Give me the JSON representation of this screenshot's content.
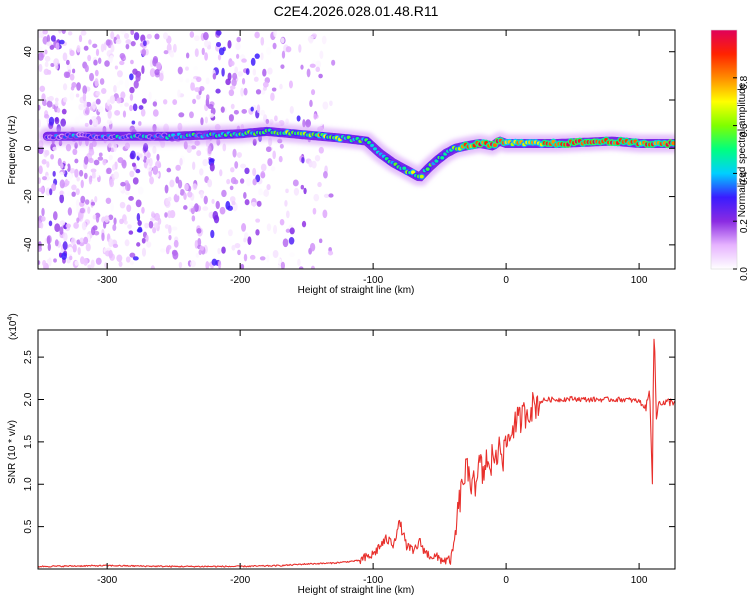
{
  "page": {
    "title": "C2E4.2026.028.01.48.R11"
  },
  "colors": {
    "snr_line": "#e8302c",
    "spectral_min": "#ffffff",
    "spectral_low": "#8a2be2",
    "spectral_max": "#e0005a"
  },
  "chart_data": [
    {
      "type": "heatmap",
      "title": "C2E4.2026.028.01.48.R11",
      "xlabel": "Height of straight line (km)",
      "ylabel": "Frequency (Hz)",
      "xlim": [
        -352,
        127
      ],
      "ylim": [
        -50,
        49
      ],
      "xticks": [
        -300,
        -200,
        -100,
        0,
        100
      ],
      "xtick_labels": [
        "-300",
        "-200",
        "-100",
        "0",
        "100"
      ],
      "yticks": [
        -40,
        -20,
        0,
        20,
        40
      ],
      "ytick_labels": [
        "-40",
        "-20",
        "0",
        "20",
        "40"
      ],
      "colorbar": {
        "label": "Normalized spectral amplitude",
        "range": [
          0,
          1
        ],
        "ticks": [
          0.0,
          0.2,
          0.4,
          0.6,
          0.8
        ],
        "tick_labels": [
          "0.0",
          "0.2",
          "0.4",
          "0.6",
          "0.8"
        ],
        "colors": [
          "#ffffff",
          "#e6b3ff",
          "#8a2be2",
          "#3a1cff",
          "#00cfff",
          "#00ff7f",
          "#7fff00",
          "#ffff00",
          "#ff8c00",
          "#ff2200",
          "#e0005a"
        ]
      },
      "ridge": {
        "name": "dominant frequency",
        "x": [
          -345,
          -300,
          -250,
          -200,
          -180,
          -160,
          -140,
          -120,
          -105,
          -95,
          -85,
          -75,
          -65,
          -58,
          -52,
          -45,
          -38,
          -30,
          -20,
          -10,
          -5,
          0,
          10,
          40,
          80,
          100,
          127
        ],
        "y": [
          5,
          5,
          5,
          6,
          7,
          6,
          5,
          4,
          3,
          -2,
          -6,
          -9,
          -12,
          -8,
          -5,
          -2,
          0,
          1,
          2,
          1,
          3,
          2,
          2,
          2,
          3,
          2,
          2
        ],
        "amplitude": [
          0.3,
          0.35,
          0.4,
          0.5,
          0.6,
          0.55,
          0.65,
          0.55,
          0.45,
          0.45,
          0.5,
          0.55,
          0.6,
          0.55,
          0.45,
          0.5,
          0.55,
          0.85,
          0.9,
          0.95,
          0.9,
          0.8,
          0.7,
          0.9,
          0.95,
          0.85,
          0.9
        ]
      },
      "noise_region": {
        "description": "scattered low-amplitude speckle",
        "x_range": [
          -352,
          -130
        ],
        "y_range": [
          -50,
          49
        ],
        "amplitude_range": [
          0.0,
          0.3
        ]
      }
    },
    {
      "type": "line",
      "title": "",
      "xlabel": "Height of straight line (km)",
      "ylabel": "SNR (10 * v/v)",
      "yscale_label": "(x10",
      "yscale_exponent": "4",
      "yscale_suffix": ")",
      "xlim": [
        -352,
        127
      ],
      "ylim": [
        0,
        2.82
      ],
      "xticks": [
        -300,
        -200,
        -100,
        0,
        100
      ],
      "xtick_labels": [
        "-300",
        "-200",
        "-100",
        "0",
        "100"
      ],
      "yticks": [
        0.5,
        1.0,
        1.5,
        2.0,
        2.5
      ],
      "ytick_labels": [
        "0.5",
        "1.0",
        "1.5",
        "2.0",
        "2.5"
      ],
      "series": [
        {
          "name": "SNR",
          "x": [
            -352,
            -300,
            -250,
            -200,
            -170,
            -150,
            -130,
            -110,
            -100,
            -95,
            -90,
            -85,
            -80,
            -75,
            -70,
            -65,
            -60,
            -55,
            -50,
            -45,
            -42,
            -40,
            -38,
            -35,
            -32,
            -30,
            -27,
            -25,
            -22,
            -20,
            -17,
            -15,
            -12,
            -10,
            -7,
            -5,
            -2,
            0,
            3,
            5,
            10,
            15,
            20,
            25,
            30,
            40,
            50,
            60,
            70,
            80,
            90,
            100,
            105,
            108,
            110,
            111,
            112,
            113,
            115,
            118,
            122,
            127
          ],
          "y": [
            0.03,
            0.04,
            0.03,
            0.03,
            0.04,
            0.06,
            0.07,
            0.1,
            0.17,
            0.27,
            0.35,
            0.3,
            0.55,
            0.28,
            0.2,
            0.32,
            0.18,
            0.15,
            0.12,
            0.1,
            0.1,
            0.2,
            0.45,
            0.8,
            1.05,
            1.2,
            0.95,
            1.2,
            0.9,
            1.3,
            1.05,
            1.35,
            1.05,
            1.45,
            1.2,
            1.6,
            1.3,
            1.5,
            1.55,
            1.7,
            1.75,
            1.85,
            1.92,
            1.97,
            2.0,
            2.0,
            2.01,
            2.0,
            2.0,
            2.0,
            2.0,
            1.98,
            1.9,
            2.1,
            1.05,
            2.8,
            2.45,
            1.75,
            2.0,
            1.95,
            1.97,
            1.98
          ]
        }
      ]
    }
  ]
}
